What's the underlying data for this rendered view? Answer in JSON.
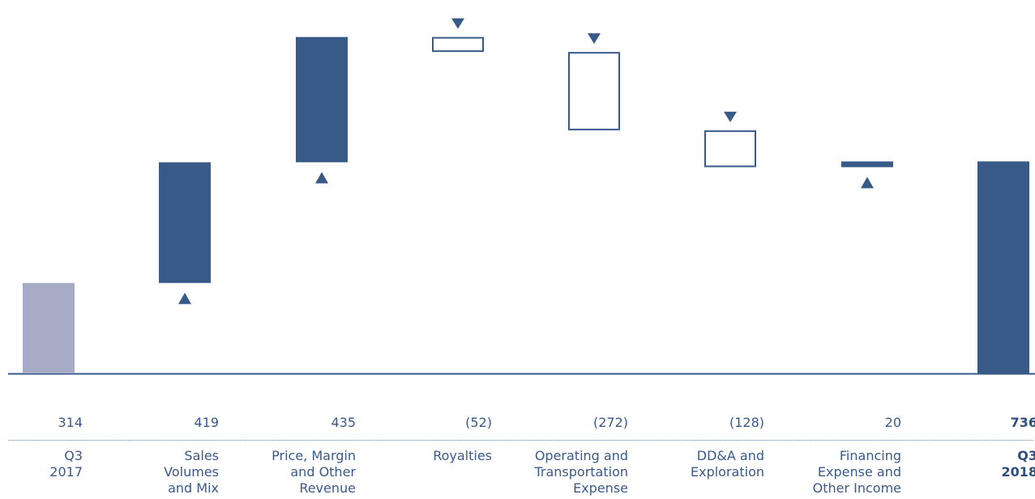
{
  "chart_data": {
    "type": "waterfall",
    "ylim": [
      0,
      1250
    ],
    "colors": {
      "start_bar": "#a6abc6",
      "positive": "#385a88",
      "negative_outline": "#385a88",
      "axis": "#385a88"
    },
    "steps": [
      {
        "label": "Q3\n2017",
        "value_text": "314",
        "value": 314,
        "kind": "start"
      },
      {
        "label": "Sales\nVolumes\nand Mix",
        "value_text": "419",
        "value": 419,
        "kind": "increase"
      },
      {
        "label": "Price, Margin\nand Other\nRevenue",
        "value_text": "435",
        "value": 435,
        "kind": "increase"
      },
      {
        "label": "Royalties",
        "value_text": "(52)",
        "value": -52,
        "kind": "decrease"
      },
      {
        "label": "Operating and\nTransportation\nExpense",
        "value_text": "(272)",
        "value": -272,
        "kind": "decrease"
      },
      {
        "label": "DD&A and\nExploration",
        "value_text": "(128)",
        "value": -128,
        "kind": "decrease"
      },
      {
        "label": "Financing\nExpense and\nOther Income",
        "value_text": "20",
        "value": 20,
        "kind": "increase"
      },
      {
        "label": "Q3\n2018",
        "value_text": "736",
        "value": 736,
        "kind": "end"
      }
    ]
  }
}
